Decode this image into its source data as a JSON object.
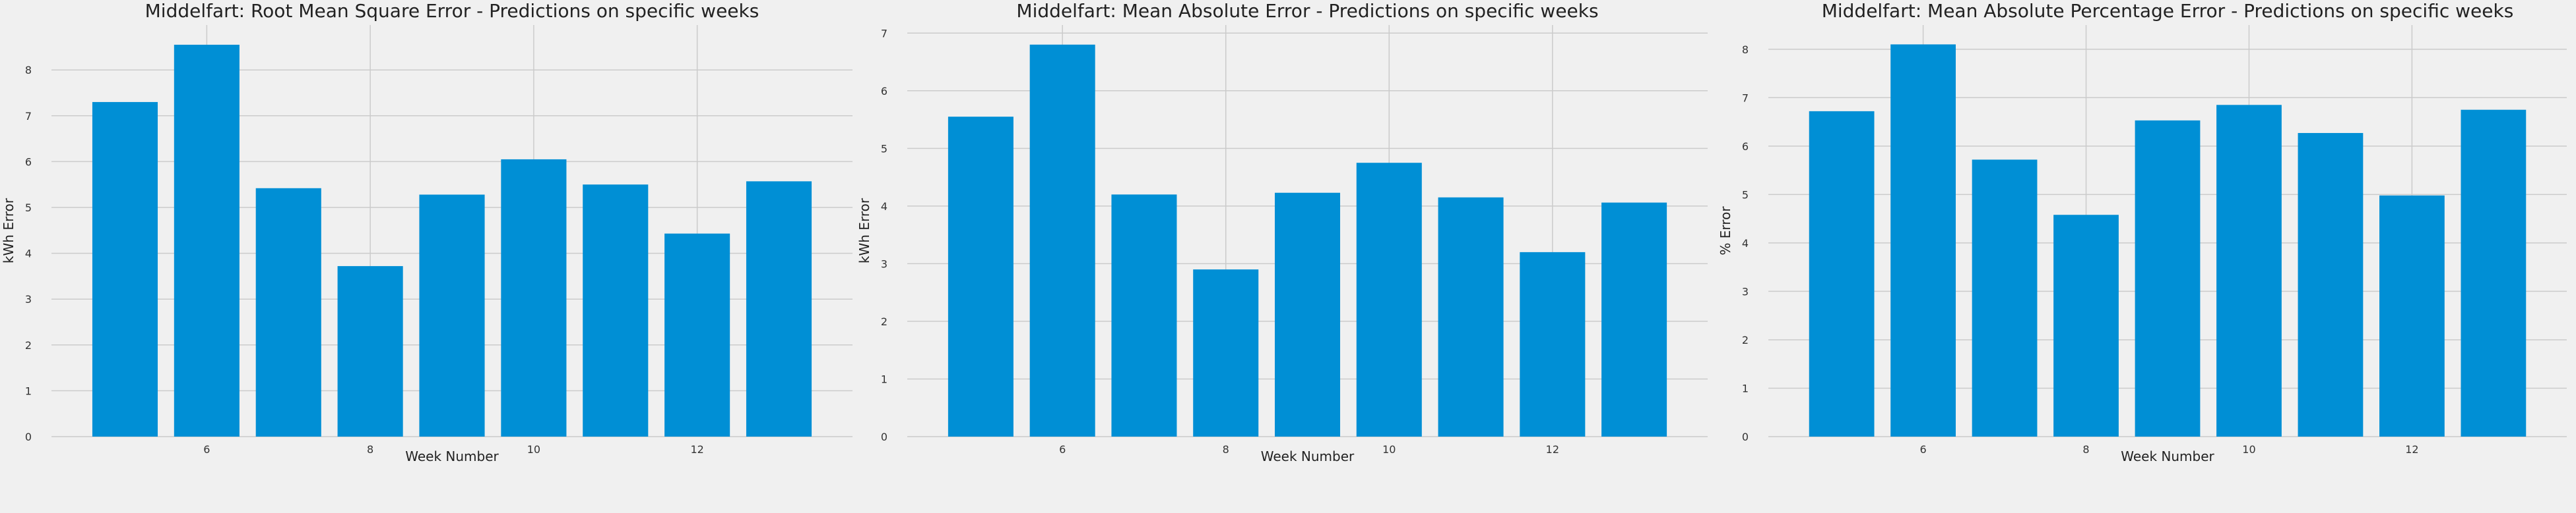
{
  "colors": {
    "background": "#f0f0f0",
    "bar": "#008fd5",
    "grid": "#cbcbcb"
  },
  "chart_data": [
    {
      "type": "bar",
      "title": "Middelfart: Root Mean Square Error - Predictions on specific weeks",
      "xlabel": "Week Number",
      "ylabel": "kWh Error",
      "x": [
        5,
        6,
        7,
        8,
        9,
        10,
        11,
        12,
        13
      ],
      "values": [
        7.3,
        8.55,
        5.42,
        3.72,
        5.28,
        6.05,
        5.5,
        4.43,
        5.57
      ],
      "xticks": [
        6,
        8,
        10,
        12
      ],
      "yticks": [
        0,
        1,
        2,
        3,
        4,
        5,
        6,
        7,
        8
      ],
      "ylim": [
        0,
        8.98
      ],
      "xlim": [
        4.1,
        13.9
      ],
      "grid": true
    },
    {
      "type": "bar",
      "title": "Middelfart: Mean Absolute Error - Predictions on specific weeks",
      "xlabel": "Week Number",
      "ylabel": "kWh Error",
      "x": [
        5,
        6,
        7,
        8,
        9,
        10,
        11,
        12,
        13
      ],
      "values": [
        5.55,
        6.8,
        4.2,
        2.9,
        4.23,
        4.75,
        4.15,
        3.2,
        4.06
      ],
      "xticks": [
        6,
        8,
        10,
        12
      ],
      "yticks": [
        0,
        1,
        2,
        3,
        4,
        5,
        6,
        7
      ],
      "ylim": [
        0,
        7.14
      ],
      "xlim": [
        4.1,
        13.9
      ],
      "grid": true
    },
    {
      "type": "bar",
      "title": "Middelfart: Mean Absolute Percentage Error - Predictions on specific weeks",
      "xlabel": "Week Number",
      "ylabel": "% Error",
      "x": [
        5,
        6,
        7,
        8,
        9,
        10,
        11,
        12,
        13
      ],
      "values": [
        6.72,
        8.1,
        5.72,
        4.58,
        6.53,
        6.85,
        6.27,
        4.98,
        6.75
      ],
      "xticks": [
        6,
        8,
        10,
        12
      ],
      "yticks": [
        0,
        1,
        2,
        3,
        4,
        5,
        6,
        7,
        8
      ],
      "ylim": [
        0,
        8.5
      ],
      "xlim": [
        4.1,
        13.9
      ],
      "grid": true
    }
  ]
}
